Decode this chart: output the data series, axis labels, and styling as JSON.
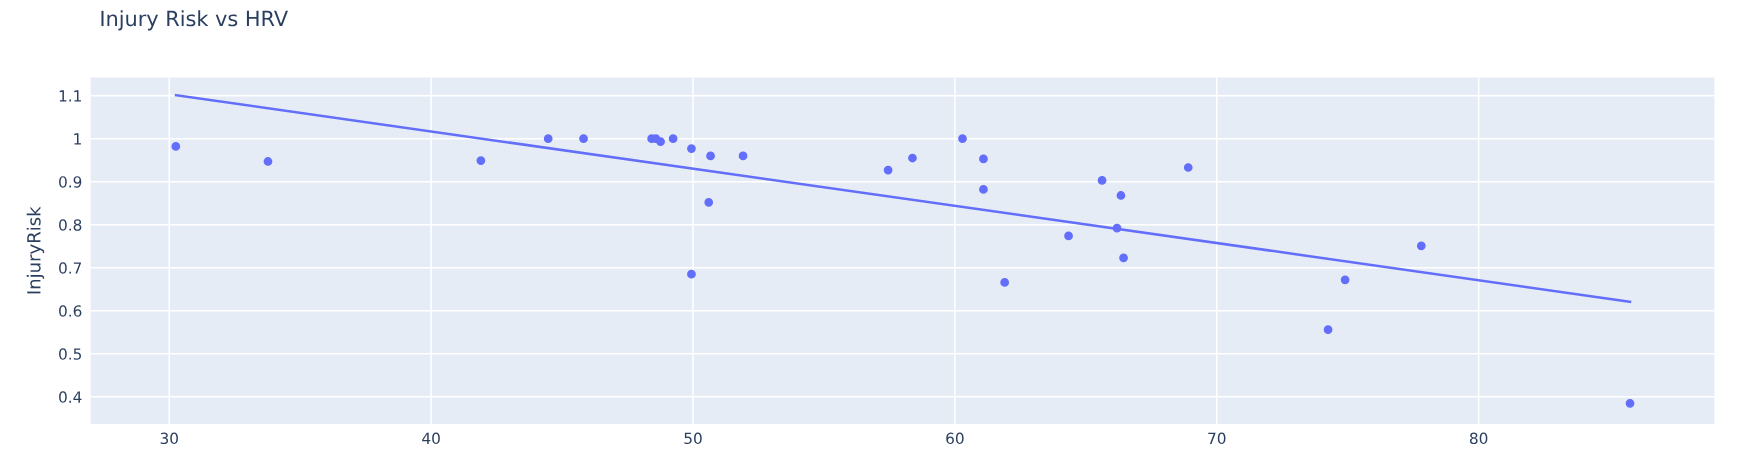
{
  "chart_data": {
    "type": "scatter",
    "title": "Injury Risk vs HRV",
    "ylabel": "InjuryRisk",
    "xlim": [
      27.0,
      89.0
    ],
    "ylim": [
      0.337,
      1.142
    ],
    "xticks": [
      30,
      40,
      50,
      60,
      70,
      80
    ],
    "yticks": [
      0.4,
      0.5,
      0.6,
      0.7,
      0.8,
      0.9,
      1,
      1.1
    ],
    "grid": true,
    "series": [
      {
        "marker": "circle",
        "color": "#636efa",
        "x": [
          30.25,
          33.77,
          41.9,
          44.47,
          45.82,
          48.42,
          48.58,
          48.76,
          49.24,
          49.94,
          50.67,
          51.91,
          50.6,
          49.94,
          57.45,
          58.38,
          60.29,
          61.09,
          61.09,
          61.9,
          64.34,
          65.62,
          66.34,
          66.19,
          66.44,
          68.91,
          74.25,
          74.9,
          77.81,
          85.78
        ],
        "values": [
          0.982,
          0.947,
          0.949,
          1.0,
          1.0,
          1.0,
          1.0,
          0.993,
          1.0,
          0.977,
          0.96,
          0.96,
          0.852,
          0.685,
          0.927,
          0.955,
          1.0,
          0.953,
          0.882,
          0.666,
          0.774,
          0.903,
          0.868,
          0.792,
          0.723,
          0.933,
          0.556,
          0.672,
          0.751,
          0.385
        ]
      },
      {
        "type": "line",
        "color": "#636efa",
        "x": [
          30.26,
          85.78
        ],
        "values": [
          1.101,
          0.621
        ]
      }
    ]
  }
}
